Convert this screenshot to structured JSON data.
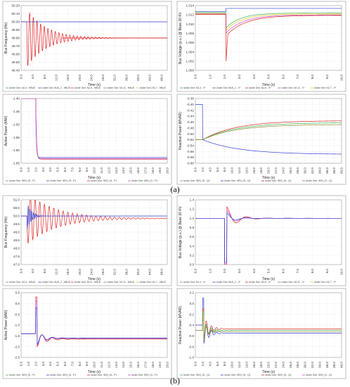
{
  "figure_labels": [
    "(a)",
    "(b)"
  ],
  "colors": {
    "red": "#e02424",
    "blue": "#2f3fd6",
    "green": "#39b34a",
    "yellow": "#e6c619",
    "cyan": "#33c9d8",
    "magenta": "#c04ac9",
    "olive": "#8a8a2a"
  },
  "chart_data": [
    {
      "id": "a-frequency",
      "type": "line",
      "group": "(a)",
      "xlabel": "Time (s)",
      "ylabel": "Bus Frequency (Hz)",
      "xlim": [
        0,
        50
      ],
      "ylim": [
        49.4,
        50.2
      ],
      "xticks": [
        "0.0",
        "4.0",
        "8.0",
        "12.0",
        "16.0",
        "20.0",
        "24.0",
        "28.0",
        "32.0",
        "36.0",
        "40.0",
        "44.0",
        "48.0"
      ],
      "yticks": [
        "50.20",
        "50.10",
        "50.00",
        "49.90",
        "49.80",
        "49.70",
        "49.60",
        "49.50",
        "49.40"
      ],
      "legend": [
        "Under Gen: N2-4 - HBUS",
        "Under Gen: BUS_2 - HBUS",
        "Under Gen: N2-6 - HBUS",
        "Under Gen: N2-11 - HBUS",
        "Under Gen: N2-7 - HBUS"
      ],
      "series": [
        {
          "kind": "damped",
          "color": "#e02424",
          "t0": 2,
          "pre": 50.0,
          "final": 49.8,
          "amp": 0.36,
          "tau": 6.5,
          "period": 1.25
        },
        {
          "kind": "flat",
          "color": "#2f3fd6",
          "value": 50.0
        },
        {
          "kind": "flat",
          "color": "#e02424",
          "value": 49.8,
          "t0": 14
        }
      ]
    },
    {
      "id": "a-voltage",
      "type": "line",
      "group": "(a)",
      "xlabel": "Time (s)",
      "ylabel": "Bus Voltage (p.u.) @ Base 20 KV",
      "xlim": [
        0,
        10
      ],
      "ylim": [
        1.0,
        1.014
      ],
      "xticks": [
        "0.0",
        "1.0",
        "2.0",
        "3.0",
        "4.0",
        "5.0",
        "6.0",
        "7.0",
        "8.0",
        "9.0",
        "10.0"
      ],
      "yticks": [
        "1.014",
        "1.012",
        "1.010",
        "1.008",
        "1.006",
        "1.004",
        "1.002",
        "1.000"
      ],
      "legend": [
        "Under Gen: N2-4 - V*",
        "Under Gen: BUS_2 - V*",
        "Under Gen: N2-6 - V*",
        "Under Gen: N2-11 - V*",
        "Under Gen: N2-7 - V*"
      ],
      "series": [
        {
          "kind": "recover",
          "color": "#2f3fd6",
          "t0": 2.1,
          "pre": 1.0127,
          "dip": 1.0134,
          "final": 1.0134,
          "tau": 0.05
        },
        {
          "kind": "recover",
          "color": "#39b34a",
          "t0": 2.1,
          "pre": 1.0125,
          "dip": 1.0092,
          "final": 1.0124,
          "tau": 1.0
        },
        {
          "kind": "recover",
          "color": "#e6c619",
          "t0": 2.1,
          "pre": 1.0123,
          "dip": 1.0087,
          "final": 1.0122,
          "tau": 1.1
        },
        {
          "kind": "recover",
          "color": "#c04ac9",
          "t0": 2.1,
          "pre": 1.0122,
          "dip": 1.0081,
          "final": 1.012,
          "tau": 1.2
        },
        {
          "kind": "recover",
          "color": "#e02424",
          "t0": 2.1,
          "pre": 1.0121,
          "dip": 1.0075,
          "final": 1.0119,
          "tau": 1.3,
          "spike": 1.002
        }
      ]
    },
    {
      "id": "a-active",
      "type": "line",
      "group": "(a)",
      "xlabel": "Time (s)",
      "ylabel": "Active Power (MW)",
      "xlim": [
        0,
        20
      ],
      "ylim": [
        -1.65,
        -1.4
      ],
      "xticks": [
        "0.0",
        "1.0",
        "2.0",
        "3.0",
        "4.0",
        "5.0",
        "6.0",
        "7.0",
        "8.0",
        "9.0",
        "10.0",
        "11.0",
        "12.0",
        "13.0",
        "14.0",
        "15.0",
        "16.0",
        "17.0",
        "18.0",
        "19.0",
        "20.0"
      ],
      "yticks": [
        "-1.40",
        "-1.45",
        "-1.50",
        "-1.55",
        "-1.60",
        "-1.65"
      ],
      "legend": [
        "Under Gen: SEN_02 - P1",
        "Under Gen: SEN_03 - P1",
        "Under Gen: SEN_04 - P1",
        "Under Gen: SEN_01 - P1"
      ],
      "series": [
        {
          "kind": "step",
          "color": "#2f3fd6",
          "t0": 2.0,
          "pre": -1.4,
          "final": -1.628,
          "tau": 0.08
        },
        {
          "kind": "step",
          "color": "#e02424",
          "t0": 2.0,
          "pre": -1.4,
          "final": -1.634,
          "tau": 0.1
        },
        {
          "kind": "step",
          "color": "#c04ac9",
          "t0": 2.0,
          "pre": -1.4,
          "final": -1.632,
          "tau": 0.1
        }
      ]
    },
    {
      "id": "a-reactive",
      "type": "line",
      "group": "(a)",
      "xlabel": "Time (s)",
      "ylabel": "Reactive Power (MVAR)",
      "xlim": [
        0,
        40
      ],
      "ylim": [
        -0.6,
        -0.38
      ],
      "xticks": [
        "0.0",
        "2.0",
        "4.0",
        "6.0",
        "8.0",
        "10.0",
        "12.0",
        "14.0",
        "16.0",
        "18.0",
        "20.0",
        "22.0",
        "24.0",
        "26.0",
        "28.0",
        "30.0",
        "32.0",
        "34.0",
        "36.0",
        "38.0",
        "40.0"
      ],
      "yticks": [
        "-0.38",
        "-0.40",
        "-0.42",
        "-0.44",
        "-0.46",
        "-0.48",
        "-0.50",
        "-0.52",
        "-0.54",
        "-0.56",
        "-0.58",
        "-0.60"
      ],
      "legend": [
        "Under Gen: SEN_02 - Q1",
        "Under Gen: SEN_03 - Q1",
        "Under Gen: SEN_04 - Q1",
        "Under Gen: SEN_01 - Q1"
      ],
      "series": [
        {
          "kind": "recover",
          "color": "#2f3fd6",
          "t0": 2.0,
          "pre": -0.4,
          "dip": -0.52,
          "final": -0.57,
          "tau": 10
        },
        {
          "kind": "recover",
          "color": "#e02424",
          "t0": 2.0,
          "pre": -0.52,
          "dip": -0.52,
          "final": -0.455,
          "tau": 9
        },
        {
          "kind": "recover",
          "color": "#39b34a",
          "t0": 2.0,
          "pre": -0.52,
          "dip": -0.52,
          "final": -0.462,
          "tau": 9
        },
        {
          "kind": "recover",
          "color": "#8a8a2a",
          "t0": 2.0,
          "pre": -0.52,
          "dip": -0.52,
          "final": -0.468,
          "tau": 9
        }
      ]
    },
    {
      "id": "b-frequency",
      "type": "line",
      "group": "(b)",
      "xlabel": "Time (s)",
      "ylabel": "Bus Frequency (Hz)",
      "xlim": [
        0,
        50
      ],
      "ylim": [
        47.0,
        51.0
      ],
      "xticks": [
        "0.0",
        "4.0",
        "8.0",
        "12.0",
        "16.0",
        "20.0",
        "24.0",
        "28.0",
        "32.0",
        "36.0",
        "40.0",
        "44.0",
        "48.0"
      ],
      "yticks": [
        "51.0",
        "50.5",
        "50.0",
        "49.5",
        "49.0",
        "48.5",
        "48.0",
        "47.5",
        "47.0"
      ],
      "legend": [
        "Under Gen: N2-4 - HBUS",
        "Under Gen: BUS_2 - HBUS",
        "Under Gen: N2-6 - HBUS",
        "Under Gen: N2-11 - HBUS",
        "Under Gen: N2-7 - HBUS"
      ],
      "series": [
        {
          "kind": "damped",
          "color": "#e02424",
          "t0": 2,
          "pre": 50.0,
          "final": 49.85,
          "amp": 1.6,
          "tau": 10,
          "period": 1.6
        },
        {
          "kind": "damped",
          "color": "#2f3fd6",
          "t0": 2,
          "pre": 50.0,
          "final": 50.0,
          "amp": 0.9,
          "tau": 1.5,
          "period": 0.6
        }
      ]
    },
    {
      "id": "b-voltage",
      "type": "line",
      "group": "(b)",
      "xlabel": "Time (s)",
      "ylabel": "Bus Voltage (p.u.) @ Base 20 KV",
      "xlim": [
        0,
        10
      ],
      "ylim": [
        0.0,
        1.4
      ],
      "xticks": [
        "0.0",
        "1.0",
        "2.0",
        "3.0",
        "4.0",
        "5.0",
        "6.0",
        "7.0",
        "8.0",
        "9.0",
        "10.0"
      ],
      "yticks": [
        "1.4",
        "1.2",
        "1.0",
        "0.8",
        "0.6",
        "0.4",
        "0.2",
        "0.0"
      ],
      "legend": [
        "Under Gen: N2-4 - V*",
        "Under Gen: BUS_2 - V*",
        "Under Gen: N2-6 - V*",
        "Under Gen: N2-11 - V*",
        "Under Gen: N2-7 - V*"
      ],
      "series": [
        {
          "kind": "fault",
          "color": "#e02424",
          "t0": 2.0,
          "t1": 2.15,
          "pre": 1.0,
          "low": 0.0,
          "peak": 1.25,
          "final": 1.0,
          "tau": 0.7
        },
        {
          "kind": "fault",
          "color": "#c04ac9",
          "t0": 2.0,
          "t1": 2.15,
          "pre": 1.0,
          "low": 0.02,
          "peak": 1.18,
          "final": 1.0,
          "tau": 0.6
        },
        {
          "kind": "fault",
          "color": "#2f3fd6",
          "t0": 2.0,
          "t1": 2.15,
          "pre": 1.0,
          "low": 0.05,
          "peak": 1.12,
          "final": 1.0,
          "tau": 0.5
        }
      ]
    },
    {
      "id": "b-active",
      "type": "line",
      "group": "(b)",
      "xlabel": "Time (s)",
      "ylabel": "Active Power (MW)",
      "xlim": [
        0,
        20
      ],
      "ylim": [
        -2.5,
        0.5
      ],
      "xticks": [
        "0.0",
        "1.0",
        "2.0",
        "3.0",
        "4.0",
        "5.0",
        "6.0",
        "7.0",
        "8.0",
        "9.0",
        "10.0",
        "11.0",
        "12.0",
        "13.0",
        "14.0",
        "15.0",
        "16.0",
        "17.0",
        "18.0",
        "19.0",
        "20.0"
      ],
      "yticks": [
        "0.5",
        "0.0",
        "-0.5",
        "-1.0",
        "-1.5",
        "-2.0",
        "-2.5"
      ],
      "legend": [
        "Under Gen: SEN_02 - P1",
        "Under Gen: SEN_03 - P1",
        "Under Gen: SEN_04 - P1",
        "Under Gen: SEN_01 - P1"
      ],
      "series": [
        {
          "kind": "fault",
          "color": "#e02424",
          "t0": 2.0,
          "t1": 2.2,
          "pre": -1.4,
          "low": 0.3,
          "peak": -2.0,
          "final": -1.65,
          "tau": 1.2
        },
        {
          "kind": "fault",
          "color": "#c04ac9",
          "t0": 2.0,
          "t1": 2.2,
          "pre": -1.4,
          "low": 0.1,
          "peak": -1.95,
          "final": -1.62,
          "tau": 1.1
        },
        {
          "kind": "fault",
          "color": "#2f3fd6",
          "t0": 2.0,
          "t1": 2.2,
          "pre": -1.4,
          "low": -0.2,
          "peak": -1.9,
          "final": -1.6,
          "tau": 1.0
        }
      ]
    },
    {
      "id": "b-reactive",
      "type": "line",
      "group": "(b)",
      "xlabel": "Time (s)",
      "ylabel": "Reactive Power (MVAR)",
      "xlim": [
        0,
        40
      ],
      "ylim": [
        -1.0,
        0.2
      ],
      "xticks": [
        "0.0",
        "2.0",
        "4.0",
        "6.0",
        "8.0",
        "10.0",
        "12.0",
        "14.0",
        "16.0",
        "18.0",
        "20.0",
        "22.0",
        "24.0",
        "26.0",
        "28.0",
        "30.0",
        "32.0",
        "34.0",
        "36.0",
        "38.0",
        "40.0"
      ],
      "yticks": [
        "0.2",
        "0.0",
        "-0.2",
        "-0.4",
        "-0.6",
        "-0.8",
        "-1.0"
      ],
      "legend": [
        "Under Gen: SEN_02 - Q1",
        "Under Gen: SEN_03 - Q1",
        "Under Gen: SEN_04 - Q1",
        "Under Gen: SEN_01 - Q1"
      ],
      "series": [
        {
          "kind": "fault",
          "color": "#2f3fd6",
          "t0": 2.0,
          "t1": 2.3,
          "pre": -0.4,
          "low": 0.1,
          "peak": -0.75,
          "final": -0.55,
          "tau": 1.5
        },
        {
          "kind": "fault",
          "color": "#e02424",
          "t0": 2.0,
          "t1": 2.3,
          "pre": -0.5,
          "low": -0.1,
          "peak": -0.7,
          "final": -0.47,
          "tau": 1.5
        },
        {
          "kind": "fault",
          "color": "#39b34a",
          "t0": 2.0,
          "t1": 2.3,
          "pre": -0.5,
          "low": -0.15,
          "peak": -0.68,
          "final": -0.5,
          "tau": 1.5
        },
        {
          "kind": "fault",
          "color": "#8a8a2a",
          "t0": 2.0,
          "t1": 2.3,
          "pre": -0.5,
          "low": -0.2,
          "peak": -0.66,
          "final": -0.52,
          "tau": 1.5
        }
      ]
    }
  ]
}
